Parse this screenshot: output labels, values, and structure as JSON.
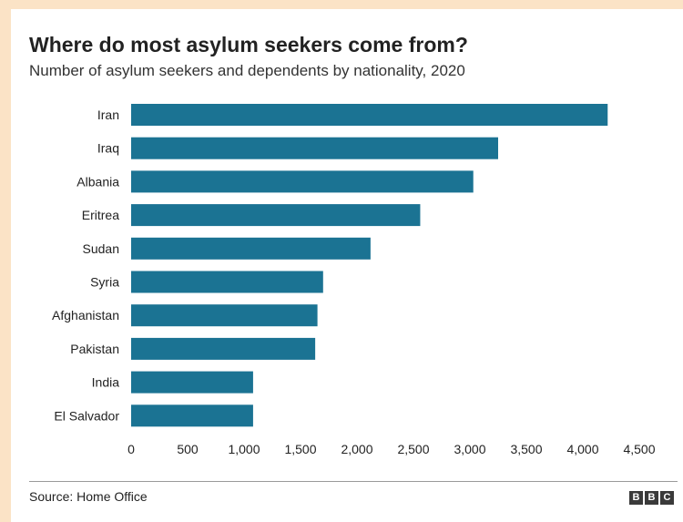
{
  "chart_data": {
    "type": "bar",
    "orientation": "horizontal",
    "title": "Where do most asylum seekers come from?",
    "subtitle": "Number of asylum seekers and dependents by nationality, 2020",
    "categories": [
      "Iran",
      "Iraq",
      "Albania",
      "Eritrea",
      "Sudan",
      "Syria",
      "Afghanistan",
      "Pakistan",
      "India",
      "El Salvador"
    ],
    "values": [
      4220,
      3250,
      3030,
      2560,
      2120,
      1700,
      1650,
      1630,
      1080,
      1080
    ],
    "xlim": [
      0,
      4500
    ],
    "xticks": [
      "0",
      "500",
      "1,000",
      "1,500",
      "2,000",
      "2,500",
      "3,000",
      "3,500",
      "4,000",
      "4,500"
    ],
    "bar_color": "#1b7393",
    "grid": false,
    "source": "Source: Home Office"
  },
  "branding": {
    "logo_letters": [
      "B",
      "B",
      "C"
    ]
  }
}
